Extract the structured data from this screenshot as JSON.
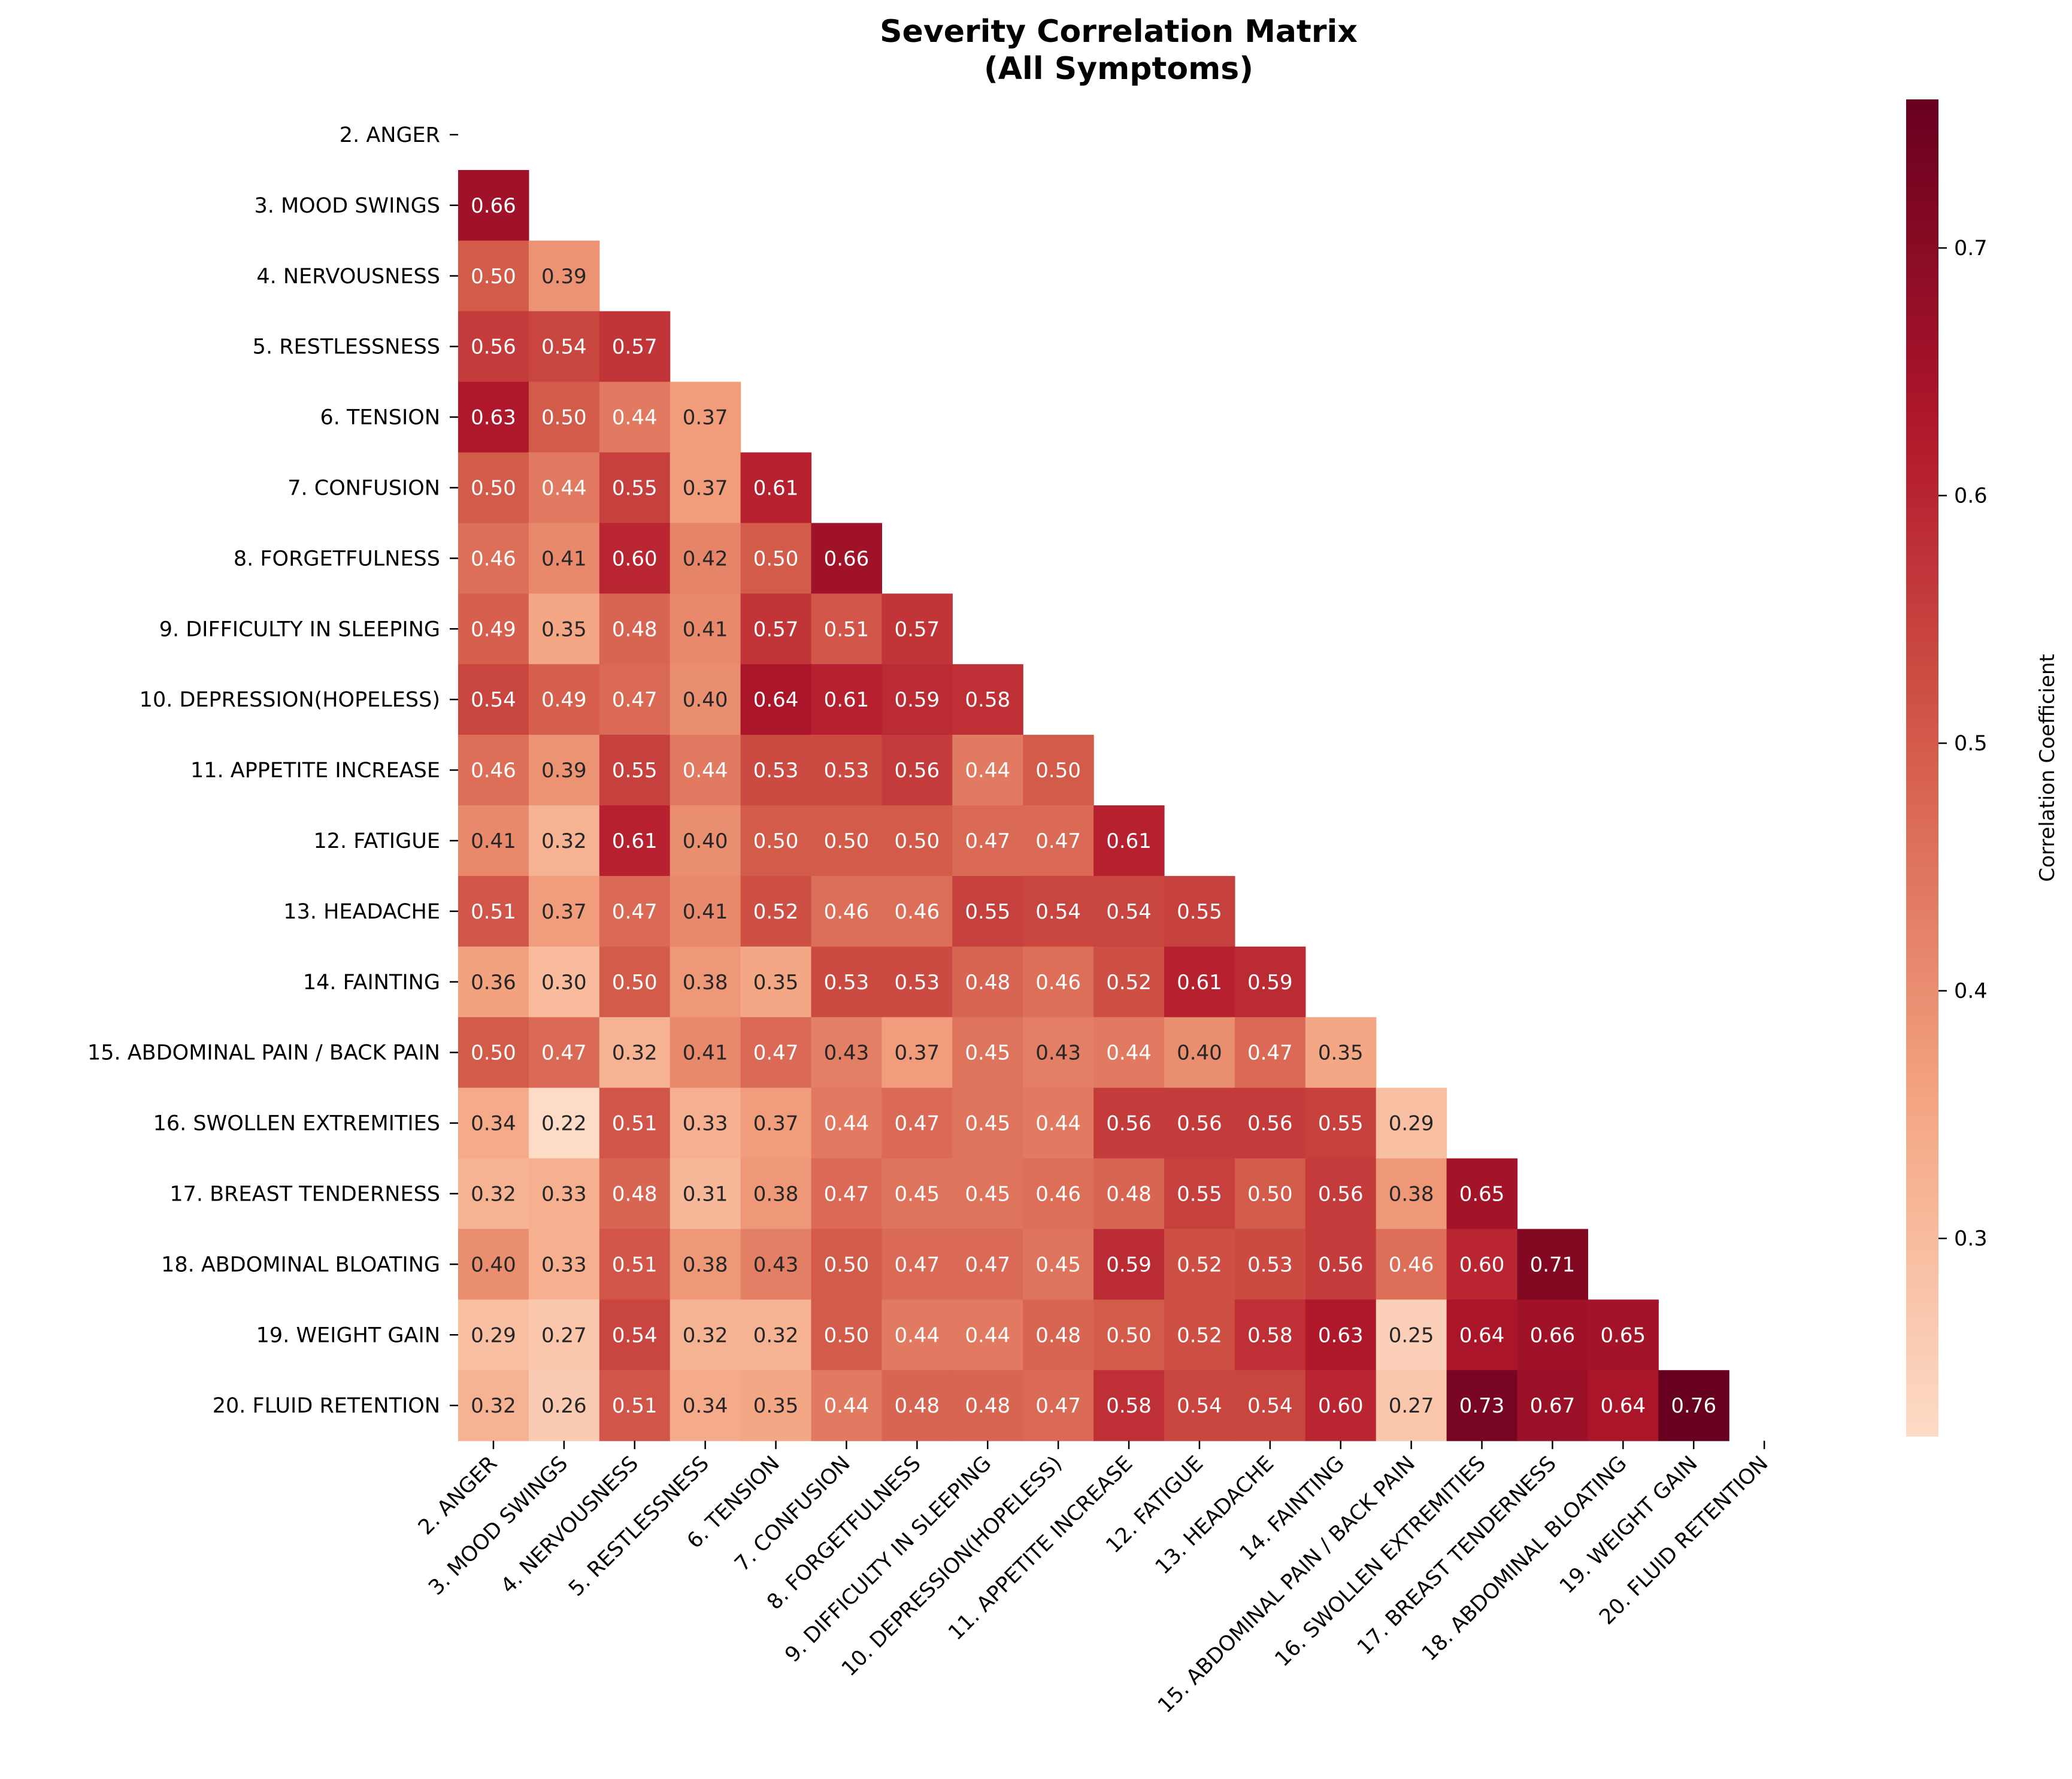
{
  "chart_data": {
    "type": "heatmap",
    "title_lines": [
      "Severity Correlation Matrix",
      "(All Symptoms)"
    ],
    "colorbar_label": "Correlation Coefficient",
    "colorbar_range": [
      0.22,
      0.76
    ],
    "colorbar_ticks": [
      "0.3",
      "0.4",
      "0.5",
      "0.6",
      "0.7"
    ],
    "colorscale": "RdBu_r (positive half)",
    "mask": "upper triangle incl. diagonal",
    "labels": [
      "2. ANGER",
      "3. MOOD SWINGS",
      "4. NERVOUSNESS",
      "5. RESTLESSNESS",
      "6. TENSION",
      "7. CONFUSION",
      "8. FORGETFULNESS",
      "9. DIFFICULTY IN SLEEPING",
      "10. DEPRESSION(HOPELESS)",
      "11. APPETITE INCREASE",
      "12. FATIGUE",
      "13. HEADACHE",
      "14. FAINTING",
      "15. ABDOMINAL PAIN / BACK PAIN",
      "16. SWOLLEN EXTREMITIES",
      "17. BREAST TENDERNESS",
      "18. ABDOMINAL BLOATING",
      "19. WEIGHT GAIN",
      "20. FLUID RETENTION"
    ],
    "values": [
      [],
      [
        "0.66"
      ],
      [
        "0.50",
        "0.39"
      ],
      [
        "0.56",
        "0.54",
        "0.57"
      ],
      [
        "0.63",
        "0.50",
        "0.44",
        "0.37"
      ],
      [
        "0.50",
        "0.44",
        "0.55",
        "0.37",
        "0.61"
      ],
      [
        "0.46",
        "0.41",
        "0.60",
        "0.42",
        "0.50",
        "0.66"
      ],
      [
        "0.49",
        "0.35",
        "0.48",
        "0.41",
        "0.57",
        "0.51",
        "0.57"
      ],
      [
        "0.54",
        "0.49",
        "0.47",
        "0.40",
        "0.64",
        "0.61",
        "0.59",
        "0.58"
      ],
      [
        "0.46",
        "0.39",
        "0.55",
        "0.44",
        "0.53",
        "0.53",
        "0.56",
        "0.44",
        "0.50"
      ],
      [
        "0.41",
        "0.32",
        "0.61",
        "0.40",
        "0.50",
        "0.50",
        "0.50",
        "0.47",
        "0.47",
        "0.61"
      ],
      [
        "0.51",
        "0.37",
        "0.47",
        "0.41",
        "0.52",
        "0.46",
        "0.46",
        "0.55",
        "0.54",
        "0.54",
        "0.55"
      ],
      [
        "0.36",
        "0.30",
        "0.50",
        "0.38",
        "0.35",
        "0.53",
        "0.53",
        "0.48",
        "0.46",
        "0.52",
        "0.61",
        "0.59"
      ],
      [
        "0.50",
        "0.47",
        "0.32",
        "0.41",
        "0.47",
        "0.43",
        "0.37",
        "0.45",
        "0.43",
        "0.44",
        "0.40",
        "0.47",
        "0.35"
      ],
      [
        "0.34",
        "0.22",
        "0.51",
        "0.33",
        "0.37",
        "0.44",
        "0.47",
        "0.45",
        "0.44",
        "0.56",
        "0.56",
        "0.56",
        "0.55",
        "0.29"
      ],
      [
        "0.32",
        "0.33",
        "0.48",
        "0.31",
        "0.38",
        "0.47",
        "0.45",
        "0.45",
        "0.46",
        "0.48",
        "0.55",
        "0.50",
        "0.56",
        "0.38",
        "0.65"
      ],
      [
        "0.40",
        "0.33",
        "0.51",
        "0.38",
        "0.43",
        "0.50",
        "0.47",
        "0.47",
        "0.45",
        "0.59",
        "0.52",
        "0.53",
        "0.56",
        "0.46",
        "0.60",
        "0.71"
      ],
      [
        "0.29",
        "0.27",
        "0.54",
        "0.32",
        "0.32",
        "0.50",
        "0.44",
        "0.44",
        "0.48",
        "0.50",
        "0.52",
        "0.58",
        "0.63",
        "0.25",
        "0.64",
        "0.66",
        "0.65"
      ],
      [
        "0.32",
        "0.26",
        "0.51",
        "0.34",
        "0.35",
        "0.44",
        "0.48",
        "0.48",
        "0.47",
        "0.58",
        "0.54",
        "0.54",
        "0.60",
        "0.27",
        "0.73",
        "0.67",
        "0.64",
        "0.76"
      ]
    ]
  }
}
